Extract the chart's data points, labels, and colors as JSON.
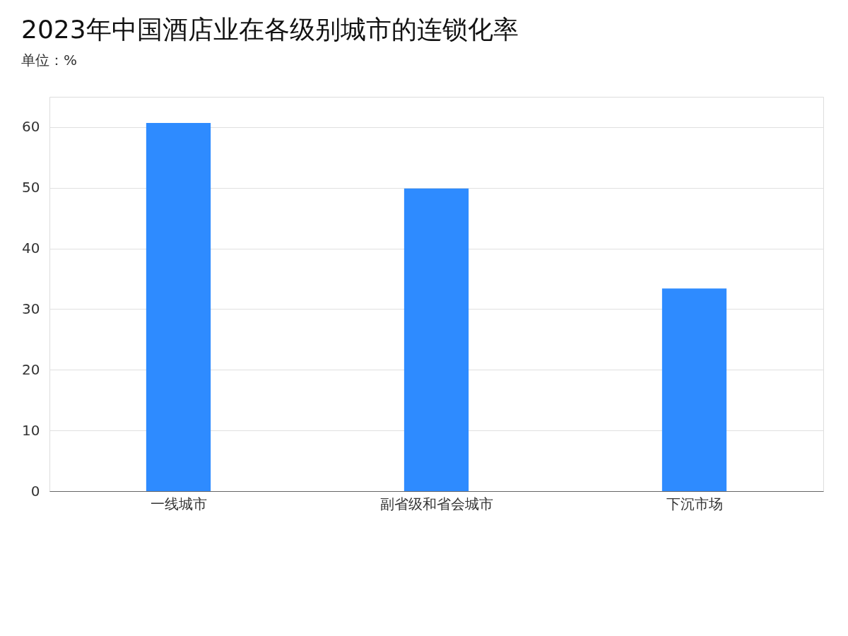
{
  "chart_data": {
    "type": "bar",
    "title": "2023年中国酒店业在各级别城市的连锁化率",
    "subtitle": "单位：%",
    "categories": [
      "一线城市",
      "副省级和省会城市",
      "下沉市场"
    ],
    "values": [
      60.7,
      49.9,
      33.4
    ],
    "color": "#2e8bff",
    "ylim": [
      0,
      65
    ],
    "yticks": [
      0,
      10,
      20,
      30,
      40,
      50,
      60
    ],
    "grid": "y"
  }
}
